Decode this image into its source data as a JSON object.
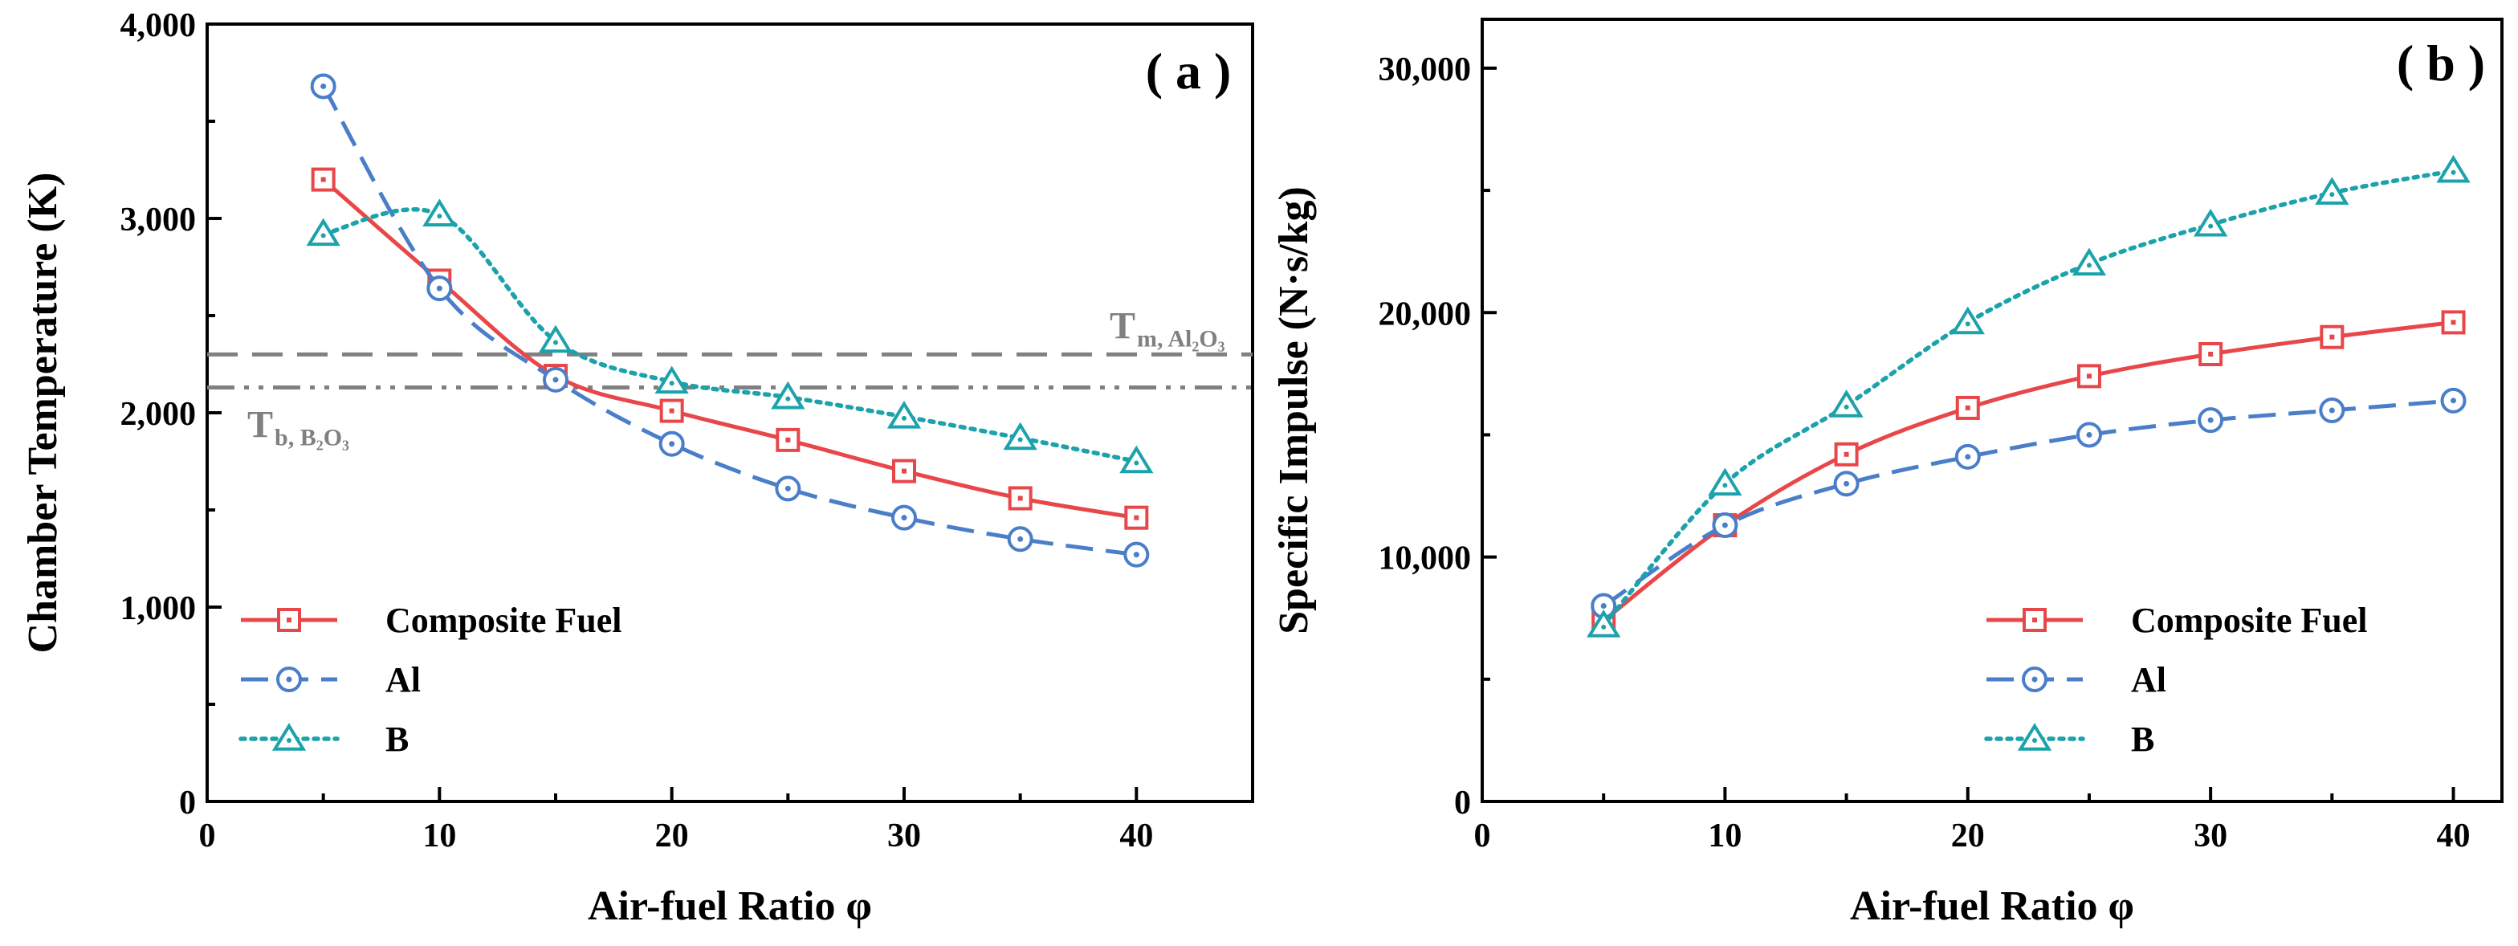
{
  "chart_data": [
    {
      "type": "line",
      "panel_label": "( a )",
      "xlabel": "Air-fuel Ratio φ",
      "ylabel": "Chamber Temperature (K)",
      "xlim": [
        0,
        45
      ],
      "ylim": [
        0,
        4000
      ],
      "xticks": [
        0,
        10,
        20,
        30,
        40
      ],
      "yticks": [
        0,
        1000,
        2000,
        3000,
        4000
      ],
      "xtick_labels": [
        "0",
        "10",
        "20",
        "30",
        "40"
      ],
      "ytick_labels": [
        "0",
        "1,000",
        "2,000",
        "3,000",
        "4,000"
      ],
      "x": [
        5,
        10,
        15,
        20,
        25,
        30,
        35,
        40
      ],
      "series": [
        {
          "name": "Composite Fuel",
          "values": [
            3200,
            2680,
            2190,
            2010,
            1860,
            1700,
            1560,
            1460
          ],
          "color": "#e8474a",
          "dash": "solid",
          "marker": "square"
        },
        {
          "name": "Al",
          "values": [
            3680,
            2640,
            2170,
            1840,
            1610,
            1460,
            1350,
            1270
          ],
          "color": "#4a7ec9",
          "dash": "dashed",
          "marker": "circle"
        },
        {
          "name": "B",
          "values": [
            2920,
            3020,
            2370,
            2160,
            2080,
            1980,
            1870,
            1750
          ],
          "color": "#1ba2ab",
          "dash": "dotted",
          "marker": "triangle"
        }
      ],
      "reference_lines": [
        {
          "y": 2300,
          "label_main": "T",
          "label_sub": "m, Al₂O₃",
          "style": "dashed",
          "color": "#808080"
        },
        {
          "y": 2130,
          "label_main": "T",
          "label_sub": "b, B₂O₃",
          "style": "dash-dot-dot",
          "color": "#808080"
        }
      ],
      "legend_position": "bottom-left"
    },
    {
      "type": "line",
      "panel_label": "( b )",
      "xlabel": "Air-fuel Ratio φ",
      "ylabel": "Specific Impulse (N·s/kg)",
      "xlim": [
        0,
        42
      ],
      "ylim": [
        0,
        32000
      ],
      "xticks": [
        0,
        10,
        20,
        30,
        40
      ],
      "yticks": [
        0,
        10000,
        20000,
        30000
      ],
      "xtick_labels": [
        "0",
        "10",
        "20",
        "30",
        "40"
      ],
      "ytick_labels": [
        "0",
        "10,000",
        "20,000",
        "30,000"
      ],
      "x": [
        5,
        10,
        15,
        20,
        25,
        30,
        35,
        40
      ],
      "series": [
        {
          "name": "Composite Fuel",
          "values": [
            7400,
            11300,
            14200,
            16100,
            17400,
            18300,
            19000,
            19600
          ],
          "color": "#e8474a",
          "dash": "solid",
          "marker": "square"
        },
        {
          "name": "Al",
          "values": [
            8000,
            11300,
            13000,
            14100,
            15000,
            15600,
            16000,
            16400
          ],
          "color": "#4a7ec9",
          "dash": "dashed",
          "marker": "circle"
        },
        {
          "name": "B",
          "values": [
            7200,
            13000,
            16200,
            19600,
            22000,
            23600,
            24900,
            25800
          ],
          "color": "#1ba2ab",
          "dash": "dotted",
          "marker": "triangle"
        }
      ],
      "legend_position": "bottom-right"
    }
  ]
}
